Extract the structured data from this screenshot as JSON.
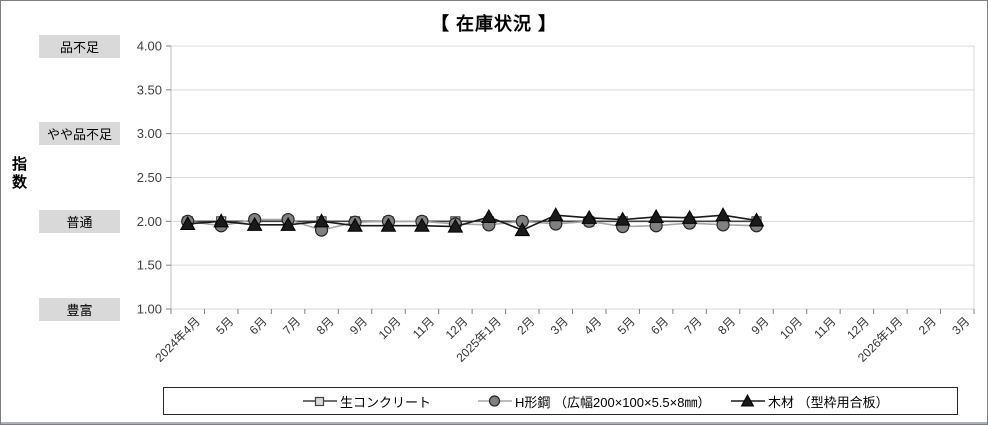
{
  "title": "【 在庫状況 】",
  "y_axis": {
    "title": "指数",
    "ticks": [
      "4.00",
      "3.50",
      "3.00",
      "2.50",
      "2.00",
      "1.50",
      "1.00"
    ]
  },
  "level_labels": [
    {
      "label": "品不足",
      "value": 4.0
    },
    {
      "label": "やや品不足",
      "value": 3.0
    },
    {
      "label": "普通",
      "value": 2.0
    },
    {
      "label": "豊富",
      "value": 1.0
    }
  ],
  "colors": {
    "grid": "#d9d9d9",
    "axis": "#bfbfbf",
    "tick": "#7f7f7f",
    "tick_label": "#404040",
    "x_label": "#333333",
    "label_bg": "#d9d9d9"
  },
  "chart_data": {
    "type": "line",
    "title": "【 在庫状況 】",
    "ylabel": "指数",
    "ylim": [
      1.0,
      4.0
    ],
    "ystep": 0.5,
    "grid": true,
    "legend_position": "bottom",
    "categories": [
      "2024年4月",
      "5月",
      "6月",
      "7月",
      "8月",
      "9月",
      "10月",
      "11月",
      "12月",
      "2025年1月",
      "2月",
      "3月",
      "4月",
      "5月",
      "6月",
      "7月",
      "8月",
      "9月",
      "10月",
      "11月",
      "12月",
      "2026年1月",
      "2月",
      "3月"
    ],
    "series": [
      {
        "name": "生コンクリート",
        "marker": "square",
        "line_color": "#404040",
        "marker_fill": "#d9d9d9",
        "marker_stroke": "#404040",
        "values": [
          2.0,
          2.0,
          2.0,
          2.0,
          2.0,
          2.0,
          2.0,
          2.0,
          2.0,
          2.0,
          2.0,
          2.0,
          2.0,
          2.0,
          2.0,
          2.0,
          2.0,
          2.0,
          null,
          null,
          null,
          null,
          null,
          null
        ]
      },
      {
        "name": "H形鋼 （広幅200×100×5.5×8㎜）",
        "marker": "circle",
        "line_color": "#a6a6a6",
        "marker_fill": "#808080",
        "marker_stroke": "#262626",
        "values": [
          2.0,
          1.95,
          2.02,
          2.02,
          1.9,
          1.99,
          2.0,
          2.0,
          1.97,
          1.96,
          2.0,
          1.97,
          2.0,
          1.94,
          1.95,
          1.98,
          1.96,
          1.95,
          null,
          null,
          null,
          null,
          null,
          null
        ]
      },
      {
        "name": "木材 （型枠用合板）",
        "marker": "triangle",
        "line_color": "#1a1a1a",
        "marker_fill": "#1a1a1a",
        "marker_stroke": "#000000",
        "values": [
          1.97,
          2.0,
          1.96,
          1.96,
          2.0,
          1.95,
          1.95,
          1.95,
          1.94,
          2.05,
          1.9,
          2.07,
          2.04,
          2.02,
          2.05,
          2.04,
          2.07,
          2.01,
          null,
          null,
          null,
          null,
          null,
          null
        ]
      }
    ]
  }
}
